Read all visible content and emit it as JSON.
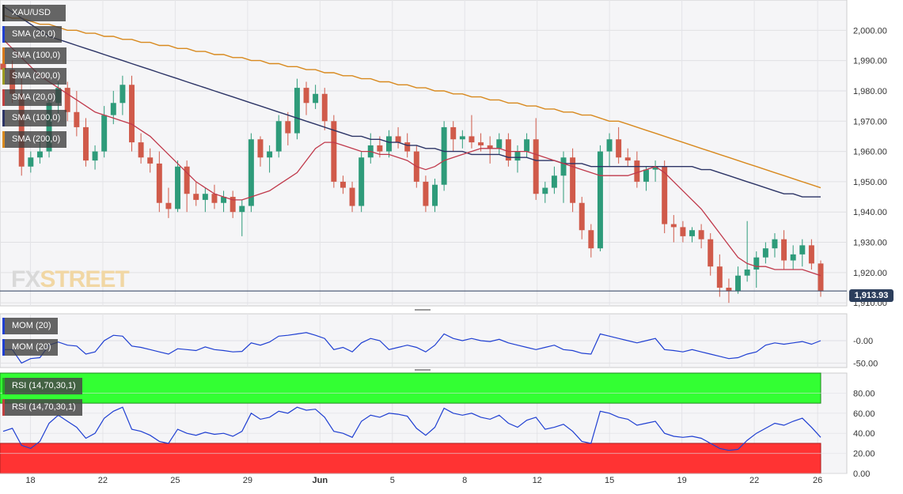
{
  "symbol": "XAU/USD",
  "price_labels": [
    {
      "text": "SMA (20,0)",
      "color": "#1f3fd2"
    },
    {
      "text": "SMA (100,0)",
      "color": "#d87a1a"
    },
    {
      "text": "SMA (200,0)",
      "color": "#9c9c20"
    },
    {
      "text": "SMA (20,0)",
      "color": "#c04040"
    },
    {
      "text": "SMA (100,0)",
      "color": "#2c3466"
    },
    {
      "text": "SMA (200,0)",
      "color": "#d88a20"
    }
  ],
  "mom_labels": [
    {
      "text": "MOM (20)",
      "color": "#1f3fd2"
    },
    {
      "text": "MOM (20)",
      "color": "#1f3fd2"
    }
  ],
  "rsi_labels": [
    {
      "text": "RSI (14,70,30,1)",
      "color": "#22aa22"
    },
    {
      "text": "RSI (14,70,30,1)",
      "color": "#c04040"
    }
  ],
  "watermark": {
    "main": "FX",
    "accent": "STREET"
  },
  "last_price": "1,913.93",
  "colors": {
    "up": "#2e9b7a",
    "down": "#d05a4a",
    "sma20": "#c0394b",
    "sma100": "#2c3466",
    "sma200": "#d8891e",
    "mom": "#1f3fd2",
    "rsi": "#1f3fd2",
    "overbought": "#33ff33",
    "oversold": "#ff3333"
  },
  "chart_data": {
    "type": "candlestick",
    "x_ticks": [
      "18",
      "22",
      "25",
      "29",
      "Jun",
      "5",
      "8",
      "12",
      "15",
      "19",
      "22",
      "26"
    ],
    "price_axis": {
      "ticks": [
        "2,000.00",
        "1,990.00",
        "1,980.00",
        "1,970.00",
        "1,960.00",
        "1,950.00",
        "1,940.00",
        "1,930.00",
        "1,920.00",
        "1,910.00"
      ],
      "ylim": [
        1909,
        2010
      ]
    },
    "mom_axis": {
      "ticks": [
        "-0.00",
        "-50.00"
      ],
      "ylim": [
        -60,
        60
      ]
    },
    "rsi_axis": {
      "ticks": [
        "80.00",
        "60.00",
        "40.00",
        "20.00",
        "0.00"
      ],
      "ylim": [
        0,
        100
      ],
      "overbought": 70,
      "oversold": 30
    },
    "candles": [
      [
        1989,
        1993,
        1983,
        1987
      ],
      [
        1987,
        1990,
        1976,
        1979
      ],
      [
        1979,
        1985,
        1952,
        1955
      ],
      [
        1955,
        1960,
        1953,
        1958
      ],
      [
        1958,
        1965,
        1956,
        1960
      ],
      [
        1960,
        1978,
        1958,
        1976
      ],
      [
        1976,
        1983,
        1970,
        1981
      ],
      [
        1981,
        1983,
        1970,
        1973
      ],
      [
        1973,
        1980,
        1965,
        1968
      ],
      [
        1968,
        1971,
        1955,
        1957
      ],
      [
        1957,
        1962,
        1954,
        1960
      ],
      [
        1960,
        1975,
        1958,
        1972
      ],
      [
        1972,
        1980,
        1969,
        1976
      ],
      [
        1976,
        1985,
        1972,
        1982
      ],
      [
        1982,
        1985,
        1960,
        1963
      ],
      [
        1963,
        1966,
        1956,
        1958
      ],
      [
        1958,
        1961,
        1953,
        1956
      ],
      [
        1956,
        1960,
        1940,
        1943
      ],
      [
        1943,
        1948,
        1938,
        1941
      ],
      [
        1941,
        1957,
        1940,
        1955
      ],
      [
        1955,
        1957,
        1940,
        1946
      ],
      [
        1946,
        1950,
        1942,
        1944
      ],
      [
        1944,
        1948,
        1940,
        1946
      ],
      [
        1946,
        1949,
        1941,
        1943
      ],
      [
        1943,
        1947,
        1940,
        1945
      ],
      [
        1945,
        1947,
        1938,
        1940
      ],
      [
        1940,
        1944,
        1932,
        1942
      ],
      [
        1942,
        1966,
        1940,
        1964
      ],
      [
        1964,
        1965,
        1955,
        1958
      ],
      [
        1958,
        1962,
        1953,
        1960
      ],
      [
        1960,
        1972,
        1958,
        1970
      ],
      [
        1970,
        1973,
        1962,
        1966
      ],
      [
        1966,
        1984,
        1964,
        1981
      ],
      [
        1981,
        1983,
        1972,
        1976
      ],
      [
        1976,
        1982,
        1974,
        1979
      ],
      [
        1979,
        1981,
        1967,
        1970
      ],
      [
        1970,
        1972,
        1948,
        1950
      ],
      [
        1950,
        1952,
        1946,
        1948
      ],
      [
        1948,
        1950,
        1940,
        1942
      ],
      [
        1942,
        1960,
        1940,
        1958
      ],
      [
        1958,
        1966,
        1956,
        1962
      ],
      [
        1962,
        1965,
        1958,
        1960
      ],
      [
        1960,
        1967,
        1958,
        1965
      ],
      [
        1965,
        1968,
        1961,
        1963
      ],
      [
        1963,
        1966,
        1958,
        1960
      ],
      [
        1960,
        1962,
        1948,
        1950
      ],
      [
        1950,
        1952,
        1940,
        1942
      ],
      [
        1942,
        1951,
        1940,
        1949
      ],
      [
        1949,
        1970,
        1947,
        1968
      ],
      [
        1968,
        1970,
        1960,
        1964
      ],
      [
        1964,
        1967,
        1961,
        1965
      ],
      [
        1965,
        1972,
        1961,
        1963
      ],
      [
        1963,
        1966,
        1960,
        1962
      ],
      [
        1962,
        1965,
        1956,
        1961
      ],
      [
        1961,
        1966,
        1959,
        1964
      ],
      [
        1964,
        1966,
        1955,
        1957
      ],
      [
        1957,
        1962,
        1953,
        1960
      ],
      [
        1960,
        1966,
        1958,
        1964
      ],
      [
        1964,
        1971,
        1944,
        1946
      ],
      [
        1946,
        1950,
        1943,
        1948
      ],
      [
        1948,
        1955,
        1946,
        1952
      ],
      [
        1952,
        1960,
        1943,
        1958
      ],
      [
        1958,
        1961,
        1940,
        1943
      ],
      [
        1943,
        1945,
        1931,
        1934
      ],
      [
        1934,
        1936,
        1925,
        1928
      ],
      [
        1928,
        1962,
        1927,
        1960
      ],
      [
        1960,
        1966,
        1955,
        1964
      ],
      [
        1964,
        1968,
        1956,
        1958
      ],
      [
        1958,
        1961,
        1955,
        1957
      ],
      [
        1957,
        1960,
        1948,
        1950
      ],
      [
        1950,
        1955,
        1947,
        1954
      ],
      [
        1954,
        1957,
        1950,
        1955
      ],
      [
        1955,
        1957,
        1933,
        1936
      ],
      [
        1936,
        1939,
        1930,
        1935
      ],
      [
        1935,
        1937,
        1930,
        1932
      ],
      [
        1932,
        1935,
        1930,
        1934
      ],
      [
        1934,
        1936,
        1928,
        1931
      ],
      [
        1931,
        1933,
        1919,
        1922
      ],
      [
        1922,
        1926,
        1912,
        1915
      ],
      [
        1915,
        1918,
        1910,
        1914
      ],
      [
        1914,
        1922,
        1913,
        1919
      ],
      [
        1919,
        1937,
        1917,
        1921
      ],
      [
        1921,
        1927,
        1915,
        1925
      ],
      [
        1925,
        1930,
        1923,
        1928
      ],
      [
        1928,
        1933,
        1925,
        1931
      ],
      [
        1931,
        1934,
        1921,
        1924
      ],
      [
        1924,
        1929,
        1921,
        1926
      ],
      [
        1926,
        1931,
        1922,
        1929
      ],
      [
        1929,
        1931,
        1921,
        1923
      ],
      [
        1923,
        1924,
        1912,
        1914
      ]
    ],
    "sma20": [
      1997,
      1994,
      1991,
      1988,
      1985,
      1983,
      1981,
      1979,
      1977,
      1975,
      1973,
      1972,
      1971,
      1970,
      1969,
      1967,
      1965,
      1962,
      1959,
      1956,
      1953,
      1950,
      1948,
      1946,
      1945,
      1944,
      1944,
      1945,
      1946,
      1947,
      1949,
      1951,
      1953,
      1957,
      1961,
      1963,
      1963,
      1962,
      1961,
      1960,
      1960,
      1959,
      1959,
      1958,
      1957,
      1955,
      1954,
      1955,
      1957,
      1958,
      1959,
      1960,
      1961,
      1961,
      1961,
      1960,
      1960,
      1960,
      1959,
      1958,
      1957,
      1956,
      1955,
      1954,
      1953,
      1952,
      1952,
      1952,
      1952,
      1953,
      1954,
      1955,
      1953,
      1950,
      1947,
      1944,
      1941,
      1937,
      1933,
      1929,
      1925,
      1923,
      1922,
      1922,
      1921,
      1921,
      1921,
      1921,
      1920,
      1919
    ],
    "sma100": [
      2008,
      2006,
      2004,
      2002,
      2000,
      1998,
      1997,
      1996,
      1995,
      1994,
      1993,
      1992,
      1991,
      1990,
      1989,
      1988,
      1987,
      1986,
      1985,
      1984,
      1983,
      1982,
      1981,
      1980,
      1979,
      1978,
      1977,
      1976,
      1975,
      1974,
      1973,
      1972,
      1971,
      1970,
      1969,
      1968,
      1967,
      1966,
      1965,
      1965,
      1964,
      1964,
      1963,
      1963,
      1962,
      1962,
      1961,
      1961,
      1960,
      1960,
      1960,
      1959,
      1959,
      1959,
      1959,
      1958,
      1958,
      1958,
      1957,
      1957,
      1957,
      1956,
      1956,
      1956,
      1955,
      1955,
      1955,
      1955,
      1955,
      1955,
      1955,
      1955,
      1955,
      1955,
      1955,
      1955,
      1954,
      1954,
      1953,
      1952,
      1951,
      1950,
      1949,
      1948,
      1947,
      1946,
      1946,
      1945,
      1945,
      1945
    ],
    "sma200": [
      2005,
      2004,
      2004,
      2003,
      2002,
      2002,
      2001,
      2000,
      2000,
      1999,
      1999,
      1998,
      1998,
      1997,
      1997,
      1996,
      1996,
      1995,
      1995,
      1994,
      1994,
      1993,
      1993,
      1992,
      1992,
      1991,
      1991,
      1990,
      1990,
      1989,
      1989,
      1988,
      1988,
      1987,
      1987,
      1986,
      1986,
      1985,
      1985,
      1984,
      1984,
      1983,
      1983,
      1982,
      1982,
      1981,
      1981,
      1980,
      1980,
      1979,
      1979,
      1978,
      1978,
      1977,
      1977,
      1976,
      1976,
      1975,
      1975,
      1974,
      1974,
      1973,
      1973,
      1972,
      1972,
      1971,
      1970,
      1970,
      1969,
      1968,
      1967,
      1966,
      1965,
      1964,
      1963,
      1962,
      1961,
      1960,
      1959,
      1958,
      1957,
      1956,
      1955,
      1954,
      1953,
      1952,
      1951,
      1950,
      1949,
      1948
    ],
    "mom": [
      -20,
      -20,
      -50,
      -40,
      -38,
      -10,
      -3,
      -10,
      -12,
      -30,
      -25,
      0,
      12,
      10,
      -12,
      -15,
      -20,
      -25,
      -30,
      -18,
      -20,
      -22,
      -14,
      -20,
      -22,
      -25,
      -24,
      -5,
      -10,
      -3,
      10,
      12,
      15,
      18,
      12,
      5,
      -20,
      -15,
      -25,
      -5,
      5,
      0,
      -20,
      -15,
      -10,
      -15,
      -25,
      -10,
      15,
      5,
      0,
      5,
      0,
      -2,
      3,
      -5,
      -10,
      -15,
      -20,
      -15,
      -10,
      -20,
      -22,
      -28,
      -30,
      15,
      10,
      5,
      0,
      -5,
      0,
      5,
      -20,
      -22,
      -25,
      -20,
      -25,
      -30,
      -35,
      -40,
      -38,
      -30,
      -25,
      -10,
      -5,
      -8,
      -5,
      -2,
      -8,
      0
    ],
    "rsi": [
      42,
      45,
      28,
      25,
      32,
      50,
      58,
      52,
      46,
      35,
      40,
      55,
      62,
      66,
      44,
      42,
      38,
      32,
      30,
      44,
      40,
      38,
      41,
      39,
      40,
      37,
      42,
      60,
      54,
      56,
      62,
      60,
      66,
      63,
      64,
      56,
      42,
      40,
      36,
      52,
      58,
      56,
      60,
      59,
      57,
      45,
      38,
      46,
      65,
      60,
      58,
      60,
      56,
      54,
      58,
      50,
      46,
      53,
      56,
      44,
      46,
      49,
      42,
      32,
      30,
      62,
      60,
      56,
      54,
      48,
      50,
      52,
      40,
      37,
      36,
      37,
      35,
      30,
      25,
      23,
      24,
      33,
      40,
      45,
      50,
      48,
      52,
      55,
      46,
      36
    ]
  }
}
